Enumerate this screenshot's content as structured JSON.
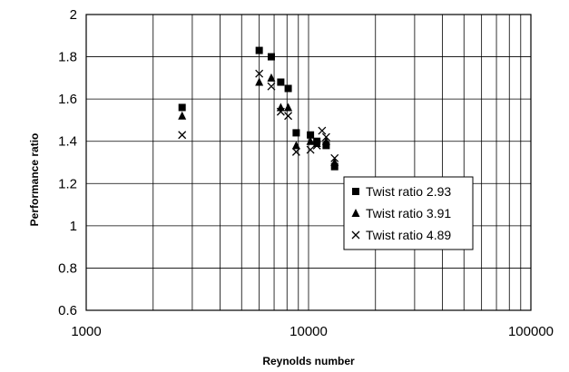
{
  "chart_data": {
    "type": "scatter",
    "title": "",
    "xlabel": "Reynolds number",
    "ylabel": "Performance ratio",
    "xscale": "log",
    "xlim": [
      1000,
      100000
    ],
    "ylim": [
      0.6,
      2
    ],
    "xticks": [
      1000,
      10000,
      100000
    ],
    "xtick_labels": [
      "1000",
      "10000",
      "100000"
    ],
    "yticks": [
      0.6,
      0.8,
      1,
      1.2,
      1.4,
      1.6,
      1.8,
      2
    ],
    "ytick_labels": [
      "0.6",
      "0.8",
      "1",
      "1.2",
      "1.4",
      "1.6",
      "1.8",
      "2"
    ],
    "grid": true,
    "legend_position": "right",
    "series": [
      {
        "name": "Twist ratio 2.93",
        "marker": "square",
        "x": [
          2700,
          6000,
          6800,
          7500,
          8100,
          8800,
          10200,
          10900,
          12000,
          13100
        ],
        "y": [
          1.56,
          1.83,
          1.8,
          1.68,
          1.65,
          1.44,
          1.43,
          1.4,
          1.38,
          1.28
        ]
      },
      {
        "name": "Twist ratio 3.91",
        "marker": "triangle",
        "x": [
          2700,
          6000,
          6800,
          7500,
          8100,
          8800,
          10200,
          10900,
          12000,
          13100
        ],
        "y": [
          1.52,
          1.68,
          1.7,
          1.56,
          1.56,
          1.38,
          1.4,
          1.39,
          1.4,
          1.3
        ]
      },
      {
        "name": "Twist ratio 4.89",
        "marker": "cross",
        "x": [
          2700,
          6000,
          6800,
          7500,
          8100,
          8800,
          10200,
          10900,
          11500,
          12000,
          13100
        ],
        "y": [
          1.43,
          1.72,
          1.66,
          1.54,
          1.52,
          1.35,
          1.36,
          1.38,
          1.45,
          1.42,
          1.32
        ]
      }
    ]
  }
}
